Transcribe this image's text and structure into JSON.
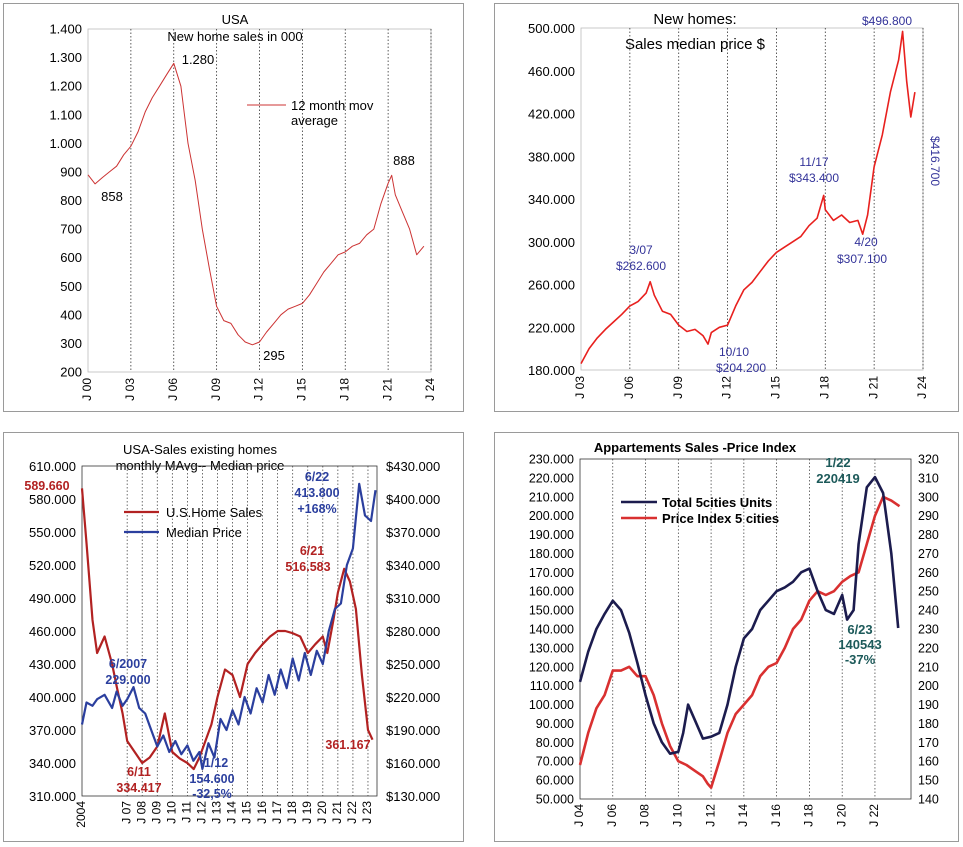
{
  "charts": [
    {
      "type": "line",
      "title": "USA",
      "subtitle": "New home sales in 000",
      "legend": "12 month mov average",
      "xticks": [
        "J 00",
        "J 03",
        "J 06",
        "J 09",
        "J 12",
        "J 15",
        "J 18",
        "J 21",
        "J 24"
      ],
      "yticks": [
        "200",
        "300",
        "400",
        "500",
        "600",
        "700",
        "800",
        "900",
        "1.000",
        "1.100",
        "1.200",
        "1.300",
        "1.400"
      ],
      "ylim": [
        200,
        1400
      ],
      "xlim": [
        2000,
        2024
      ],
      "annotations": [
        "858",
        "1.280",
        "295",
        "888"
      ],
      "colors": {
        "line": "#cc3333"
      }
    },
    {
      "type": "line",
      "title": "New homes:",
      "subtitle": "Sales median price $",
      "xticks": [
        "J 03",
        "J 06",
        "J 09",
        "J 12",
        "J 15",
        "J 18",
        "J 21",
        "J 24"
      ],
      "yticks": [
        "180.000",
        "220.000",
        "260.000",
        "300.000",
        "340.000",
        "380.000",
        "420.000",
        "460.000",
        "500.000"
      ],
      "ylim": [
        180000,
        500000
      ],
      "xlim": [
        2003,
        2024
      ],
      "annotations": [
        "3/07",
        "$262.600",
        "10/10",
        "$204.200",
        "11/17",
        "$343.400",
        "4/20",
        "$307.100",
        "$496.800",
        "$416.700"
      ],
      "colors": {
        "line": "#e8201e",
        "annotation": "#333399"
      }
    },
    {
      "type": "line",
      "title": "USA-Sales existing homes",
      "subtitle": "monthly MAvg-- Median price",
      "xticks": [
        "2004",
        "J 07",
        "J 08",
        "J 09",
        "J 10",
        "J 11",
        "J 12",
        "J 13",
        "J 14",
        "J 15",
        "J 16",
        "J 17",
        "J 18",
        "J 19",
        "J 20",
        "J 21",
        "J 22",
        "J 23"
      ],
      "yticks_left": [
        "310.000",
        "340.000",
        "370.000",
        "400.000",
        "430.000",
        "460.000",
        "490.000",
        "520.000",
        "550.000",
        "580.000",
        "610.000"
      ],
      "yticks_right": [
        "$130.000",
        "$160.000",
        "$190.000",
        "$220.000",
        "$250.000",
        "$280.000",
        "$310.000",
        "$340.000",
        "$370.000",
        "$400.000",
        "$430.000"
      ],
      "series_names": [
        "U.S.Home Sales",
        "Median Price"
      ],
      "annotations": [
        "589.660",
        "6/2007",
        "229.000",
        "6/11",
        "334.417",
        "1/12",
        "154.600",
        "-32,5%",
        "6/22",
        "413.800",
        "+168%",
        "6/21",
        "516.583",
        "361.167"
      ],
      "colors": {
        "sales": "#b22222",
        "price": "#2b3f9e"
      }
    },
    {
      "type": "line",
      "title": "Appartements Sales -Price Index",
      "xticks": [
        "J 04",
        "J 06",
        "J 08",
        "J 10",
        "J 12",
        "J 14",
        "J 16",
        "J 18",
        "J 20",
        "J 22"
      ],
      "yticks_left": [
        "50.000",
        "60.000",
        "70.000",
        "80.000",
        "90.000",
        "100.000",
        "110.000",
        "120.000",
        "130.000",
        "140.000",
        "150.000",
        "160.000",
        "170.000",
        "180.000",
        "190.000",
        "200.000",
        "210.000",
        "220.000",
        "230.000"
      ],
      "yticks_right": [
        "140",
        "150",
        "160",
        "170",
        "180",
        "190",
        "200",
        "210",
        "220",
        "230",
        "240",
        "250",
        "260",
        "270",
        "280",
        "290",
        "300",
        "310",
        "320"
      ],
      "series_names": [
        "Total  5cities Units",
        "Price Index 5 cities"
      ],
      "annotations": [
        "1/22",
        "220419",
        "6/23",
        "140543",
        "-37%"
      ],
      "colors": {
        "units": "#1c1c4e",
        "price": "#d93030",
        "annotation": "#1d5a5a"
      }
    }
  ],
  "chart_data": [
    {
      "type": "line",
      "title": "USA",
      "subtitle": "New home sales in 000",
      "ylim": [
        200,
        1400
      ],
      "series": [
        {
          "name": "12 month mov average",
          "x": [
            2000.0,
            2000.5,
            2001.0,
            2001.5,
            2002.0,
            2002.5,
            2003.0,
            2003.5,
            2004.0,
            2004.5,
            2005.0,
            2005.5,
            2006.0,
            2006.5,
            2007.0,
            2007.5,
            2008.0,
            2008.5,
            2009.0,
            2009.5,
            2010.0,
            2010.5,
            2011.0,
            2011.5,
            2012.0,
            2012.5,
            2013.0,
            2013.5,
            2014.0,
            2014.5,
            2015.0,
            2015.5,
            2016.0,
            2016.5,
            2017.0,
            2017.5,
            2018.0,
            2018.5,
            2019.0,
            2019.5,
            2020.0,
            2020.5,
            2021.0,
            2021.25,
            2021.5,
            2022.0,
            2022.5,
            2023.0,
            2023.5
          ],
          "y": [
            890,
            858,
            880,
            900,
            920,
            960,
            990,
            1040,
            1110,
            1160,
            1200,
            1240,
            1280,
            1200,
            1000,
            870,
            700,
            560,
            430,
            380,
            370,
            330,
            305,
            295,
            305,
            340,
            370,
            400,
            420,
            430,
            440,
            470,
            510,
            550,
            580,
            610,
            620,
            640,
            650,
            680,
            700,
            790,
            860,
            888,
            820,
            760,
            700,
            610,
            640
          ]
        }
      ]
    },
    {
      "type": "line",
      "title": "New homes:",
      "subtitle": "Sales median price $",
      "ylim": [
        180000,
        500000
      ],
      "series": [
        {
          "name": "",
          "x": [
            2003.0,
            2003.5,
            2004.0,
            2004.5,
            2005.0,
            2005.5,
            2006.0,
            2006.5,
            2007.0,
            2007.25,
            2007.5,
            2008.0,
            2008.5,
            2009.0,
            2009.5,
            2010.0,
            2010.5,
            2010.8,
            2011.0,
            2011.5,
            2012.0,
            2012.5,
            2013.0,
            2013.5,
            2014.0,
            2014.5,
            2015.0,
            2015.5,
            2016.0,
            2016.5,
            2017.0,
            2017.5,
            2017.9,
            2018.0,
            2018.5,
            2019.0,
            2019.5,
            2020.0,
            2020.3,
            2020.6,
            2021.0,
            2021.5,
            2022.0,
            2022.5,
            2022.75,
            2023.0,
            2023.25,
            2023.5
          ],
          "y": [
            186000,
            200000,
            210000,
            218000,
            225000,
            232000,
            240000,
            244000,
            252000,
            262600,
            250000,
            235000,
            232000,
            222000,
            216000,
            218000,
            212000,
            204200,
            215000,
            220000,
            222000,
            240000,
            255000,
            262000,
            272000,
            282000,
            290000,
            295000,
            300000,
            305000,
            315000,
            322000,
            343400,
            330000,
            320000,
            325000,
            318000,
            320000,
            307100,
            325000,
            370000,
            400000,
            440000,
            470000,
            496800,
            450000,
            416700,
            440000
          ]
        }
      ]
    },
    {
      "type": "line",
      "title": "USA-Sales existing homes",
      "subtitle": "monthly MAvg-- Median price",
      "series": [
        {
          "name": "U.S.Home Sales",
          "axis": "left",
          "x": [
            2004.0,
            2004.3,
            2004.7,
            2005.0,
            2005.5,
            2006.0,
            2006.3,
            2006.7,
            2007.0,
            2007.5,
            2008.0,
            2008.5,
            2009.0,
            2009.5,
            2010.0,
            2010.5,
            2011.0,
            2011.42,
            2011.8,
            2012.2,
            2012.6,
            2013.0,
            2013.5,
            2014.0,
            2014.5,
            2015.0,
            2015.5,
            2016.0,
            2016.5,
            2017.0,
            2017.5,
            2018.0,
            2018.5,
            2019.0,
            2019.5,
            2020.0,
            2020.3,
            2020.7,
            2021.0,
            2021.42,
            2021.8,
            2022.2,
            2022.6,
            2023.0,
            2023.3
          ],
          "y": [
            589660,
            540000,
            470000,
            440000,
            455000,
            430000,
            410000,
            385000,
            360000,
            350000,
            340000,
            345000,
            355000,
            385000,
            350000,
            344000,
            340000,
            334417,
            345000,
            360000,
            375000,
            400000,
            425000,
            420000,
            400000,
            430000,
            440000,
            448000,
            455000,
            460000,
            460000,
            458000,
            455000,
            440000,
            448000,
            455000,
            440000,
            470000,
            495000,
            516583,
            505000,
            480000,
            420000,
            370000,
            361167
          ]
        },
        {
          "name": "Median Price",
          "axis": "right",
          "x": [
            2004.0,
            2004.3,
            2004.7,
            2005.0,
            2005.5,
            2006.0,
            2006.3,
            2006.7,
            2007.0,
            2007.42,
            2007.8,
            2008.2,
            2008.6,
            2009.0,
            2009.4,
            2009.8,
            2010.2,
            2010.6,
            2011.0,
            2011.4,
            2011.8,
            2012.0,
            2012.4,
            2012.8,
            2013.2,
            2013.6,
            2014.0,
            2014.4,
            2014.8,
            2015.2,
            2015.6,
            2016.0,
            2016.4,
            2016.8,
            2017.2,
            2017.6,
            2018.0,
            2018.4,
            2018.8,
            2019.2,
            2019.6,
            2020.0,
            2020.4,
            2020.8,
            2021.2,
            2021.6,
            2022.0,
            2022.42,
            2022.8,
            2023.2,
            2023.5
          ],
          "y": [
            195000,
            215000,
            212000,
            218000,
            222000,
            210000,
            225000,
            212000,
            218000,
            229000,
            210000,
            205000,
            190000,
            175000,
            185000,
            170000,
            180000,
            168000,
            176000,
            162000,
            170000,
            154600,
            178000,
            165000,
            200000,
            190000,
            208000,
            195000,
            220000,
            205000,
            228000,
            215000,
            240000,
            222000,
            245000,
            228000,
            255000,
            235000,
            260000,
            240000,
            262000,
            250000,
            280000,
            300000,
            305000,
            340000,
            355000,
            413800,
            385000,
            380000,
            408000
          ]
        }
      ]
    },
    {
      "type": "line",
      "title": "Appartements Sales -Price Index",
      "series": [
        {
          "name": "Total  5cities Units",
          "axis": "left",
          "x": [
            2004.0,
            2004.5,
            2005.0,
            2005.5,
            2006.0,
            2006.5,
            2007.0,
            2007.5,
            2008.0,
            2008.5,
            2009.0,
            2009.5,
            2010.0,
            2010.3,
            2010.6,
            2011.0,
            2011.5,
            2012.0,
            2012.5,
            2013.0,
            2013.5,
            2014.0,
            2014.5,
            2015.0,
            2015.5,
            2016.0,
            2016.5,
            2017.0,
            2017.5,
            2018.0,
            2018.5,
            2019.0,
            2019.5,
            2020.0,
            2020.3,
            2020.7,
            2021.0,
            2021.5,
            2022.0,
            2022.5,
            2023.0,
            2023.42
          ],
          "y": [
            112000,
            128000,
            140000,
            148000,
            155000,
            150000,
            138000,
            122000,
            105000,
            90000,
            80000,
            74000,
            75000,
            85000,
            100000,
            92000,
            82000,
            83000,
            85000,
            100000,
            120000,
            135000,
            140000,
            150000,
            155000,
            160000,
            162000,
            165000,
            170000,
            172000,
            160000,
            150000,
            148000,
            158000,
            145000,
            150000,
            185000,
            215000,
            220419,
            212000,
            180000,
            140543
          ]
        },
        {
          "name": "Price Index 5 cities",
          "axis": "right",
          "x": [
            2004.0,
            2004.5,
            2005.0,
            2005.5,
            2006.0,
            2006.5,
            2007.0,
            2007.5,
            2008.0,
            2008.5,
            2009.0,
            2009.5,
            2010.0,
            2010.5,
            2011.0,
            2011.5,
            2011.8,
            2012.0,
            2012.5,
            2013.0,
            2013.5,
            2014.0,
            2014.5,
            2015.0,
            2015.5,
            2016.0,
            2016.5,
            2017.0,
            2017.5,
            2018.0,
            2018.5,
            2019.0,
            2019.5,
            2020.0,
            2020.5,
            2021.0,
            2021.5,
            2022.0,
            2022.5,
            2023.0,
            2023.5
          ],
          "y": [
            158,
            175,
            188,
            195,
            208,
            208,
            210,
            205,
            205,
            195,
            180,
            168,
            160,
            158,
            155,
            152,
            148,
            146,
            160,
            175,
            185,
            190,
            195,
            205,
            210,
            212,
            220,
            230,
            235,
            245,
            250,
            248,
            250,
            255,
            258,
            260,
            275,
            290,
            300,
            298,
            295
          ]
        }
      ]
    }
  ]
}
